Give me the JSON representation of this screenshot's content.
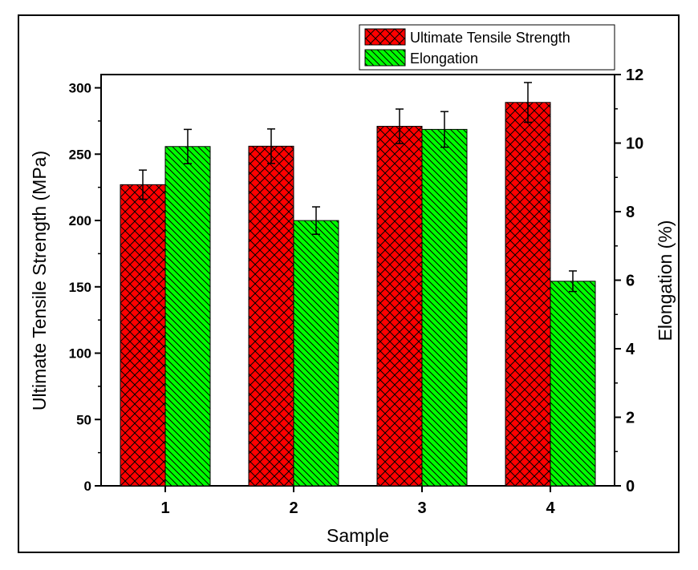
{
  "chart_data": {
    "type": "bar",
    "title": "",
    "xlabel": "Sample",
    "ylabel_left": "Ultimate Tensile Strength (MPa)",
    "ylabel_right": "Elongation (%)",
    "categories": [
      "1",
      "2",
      "3",
      "4"
    ],
    "ylim_left": [
      0,
      310
    ],
    "ylim_right": [
      0,
      12
    ],
    "yticks_left": [
      0,
      50,
      100,
      150,
      200,
      250,
      300
    ],
    "yticks_right": [
      0,
      2,
      4,
      6,
      8,
      10,
      12
    ],
    "legend_position": "top-right",
    "series": [
      {
        "name": "Ultimate Tensile Strength",
        "axis": "left",
        "color": "#ff0000",
        "pattern": "crosshatch",
        "values": [
          227,
          256,
          271,
          289
        ],
        "errors": [
          11,
          13,
          13,
          15
        ]
      },
      {
        "name": "Elongation",
        "axis": "right",
        "color": "#00ff00",
        "pattern": "diagonal",
        "values": [
          9.9,
          7.74,
          10.4,
          5.97
        ],
        "errors": [
          0.5,
          0.4,
          0.52,
          0.3
        ]
      }
    ]
  }
}
